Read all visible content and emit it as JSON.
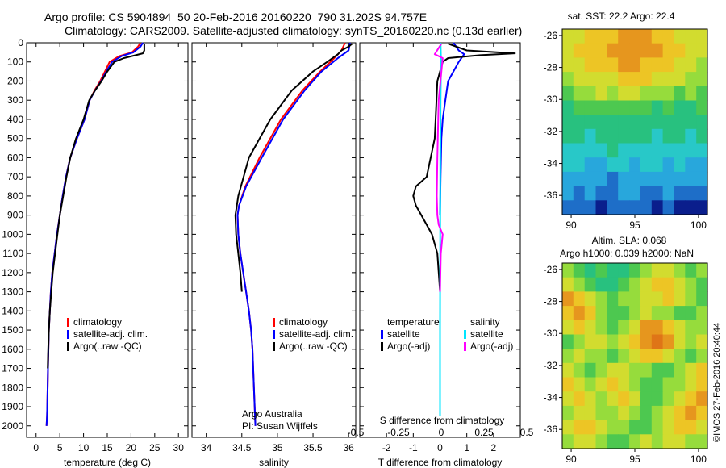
{
  "header": {
    "line1": "Argo profile: CS 5904894_50 20-Feb-2016 20160220_790 31.202S 94.757E",
    "line2": "Climatology: CARS2009. Satellite-adjusted climatology: synTS_20160220.nc (0.13d earlier)"
  },
  "colors": {
    "climatology": "#ff0000",
    "satellite": "#0000ff",
    "argo": "#000000",
    "sal_satellite": "#00e5ff",
    "sal_argo": "#ff00ff"
  },
  "depth_axis": {
    "ticks": [
      0,
      100,
      200,
      300,
      400,
      500,
      600,
      700,
      800,
      900,
      1000,
      1100,
      1200,
      1300,
      1400,
      1500,
      1600,
      1700,
      1800,
      1900,
      2000
    ],
    "ylim": [
      0,
      2060
    ],
    "inverted": true
  },
  "chart_data": [
    {
      "type": "line",
      "id": "temperature",
      "xlabel": "temperature (deg C)",
      "xticks": [
        0,
        5,
        10,
        15,
        20,
        25,
        30
      ],
      "xlim": [
        -2,
        32
      ],
      "legend": [
        "climatology",
        "satellite-adj. clim.",
        "Argo(..raw -QC)"
      ],
      "series": [
        {
          "name": "climatology",
          "color": "#ff0000",
          "x": [
            22.0,
            21.5,
            20.2,
            17.5,
            15.5,
            14.5,
            13.5,
            12.3,
            11.3,
            10.2,
            8.6,
            7.2,
            6.3,
            5.6,
            5.0,
            4.4,
            3.9,
            3.4,
            3.1,
            2.9,
            2.7,
            2.5,
            2.35,
            2.3,
            2.2
          ],
          "y": [
            0,
            20,
            50,
            70,
            100,
            150,
            200,
            250,
            300,
            400,
            500,
            600,
            700,
            800,
            900,
            1000,
            1100,
            1200,
            1300,
            1400,
            1500,
            1700,
            1900,
            1950,
            2000
          ]
        },
        {
          "name": "satellite-adj. clim.",
          "color": "#0000ff",
          "x": [
            22.5,
            22.0,
            20.5,
            18.0,
            16.0,
            14.8,
            13.7,
            12.4,
            11.3,
            10.2,
            8.6,
            7.2,
            6.3,
            5.6,
            5.0,
            4.4,
            3.9,
            3.4,
            3.1,
            2.9,
            2.7,
            2.5,
            2.35,
            2.3,
            2.2
          ],
          "y": [
            0,
            20,
            50,
            70,
            100,
            150,
            200,
            250,
            300,
            400,
            500,
            600,
            700,
            800,
            900,
            1000,
            1100,
            1200,
            1300,
            1400,
            1500,
            1700,
            1900,
            1950,
            2000
          ]
        },
        {
          "name": "Argo(..raw -QC)",
          "color": "#000000",
          "x": [
            22.8,
            22.8,
            22.5,
            21.0,
            18.5,
            16.5,
            15.0,
            13.8,
            12.4,
            11.2,
            10.0,
            8.4,
            7.2,
            6.4,
            5.7,
            5.0,
            4.5,
            4.0,
            3.5,
            3.2,
            2.9,
            2.7,
            2.55,
            2.45
          ],
          "y": [
            5,
            40,
            55,
            65,
            80,
            100,
            150,
            200,
            250,
            300,
            400,
            500,
            600,
            700,
            800,
            900,
            1000,
            1100,
            1200,
            1300,
            1400,
            1500,
            1600,
            1700
          ]
        }
      ]
    },
    {
      "type": "line",
      "id": "salinity",
      "xlabel": "salinity",
      "xticks": [
        34,
        34.5,
        35,
        35.5,
        36
      ],
      "xtick_labels": [
        "34",
        "34.5",
        "35",
        "35.5",
        "36"
      ],
      "xlim": [
        33.8,
        36.1
      ],
      "legend": [
        "climatology",
        "satellite-adj. clim.",
        "Argo(..raw -QC)"
      ],
      "annotation": [
        "Argo Australia",
        "PI: Susan Wijffels"
      ],
      "series": [
        {
          "name": "climatology",
          "color": "#ff0000",
          "x": [
            35.95,
            35.9,
            35.8,
            35.6,
            35.35,
            35.05,
            34.75,
            34.55,
            34.46,
            34.44,
            34.45,
            34.48,
            34.52,
            34.56,
            34.6,
            34.63,
            34.65,
            34.67,
            34.68,
            34.69
          ],
          "y": [
            0,
            40,
            80,
            150,
            250,
            400,
            600,
            750,
            850,
            900,
            1000,
            1100,
            1200,
            1300,
            1400,
            1500,
            1600,
            1800,
            1900,
            2000
          ]
        },
        {
          "name": "satellite-adj. clim.",
          "color": "#0000ff",
          "x": [
            36.02,
            36.0,
            35.85,
            35.62,
            35.38,
            35.08,
            34.78,
            34.56,
            34.46,
            34.44,
            34.45,
            34.48,
            34.52,
            34.56,
            34.6,
            34.63,
            34.65,
            34.67,
            34.68,
            34.69
          ],
          "y": [
            0,
            40,
            80,
            150,
            250,
            400,
            600,
            750,
            850,
            900,
            1000,
            1100,
            1200,
            1300,
            1400,
            1500,
            1600,
            1800,
            1900,
            2000
          ]
        },
        {
          "name": "Argo(..raw -QC)",
          "color": "#000000",
          "x": [
            36.05,
            36.0,
            35.9,
            35.85,
            35.7,
            35.5,
            35.2,
            34.9,
            34.6,
            34.45,
            34.41,
            34.42,
            34.45,
            34.48,
            34.5
          ],
          "y": [
            5,
            20,
            40,
            60,
            100,
            150,
            250,
            400,
            600,
            800,
            900,
            1000,
            1100,
            1200,
            1300
          ]
        }
      ]
    },
    {
      "type": "line",
      "id": "difference",
      "xlabel": "T difference from climatology",
      "xlabel_top": "S difference from climatology",
      "xticks": [
        -2,
        -1,
        0,
        1,
        2
      ],
      "xticks_top": [
        -0.5,
        -0.25,
        0,
        0.25,
        0.5
      ],
      "xtick_labels_top": [
        "-0.5",
        "-0.25",
        "0",
        "0.25",
        "0.5"
      ],
      "xlim": [
        -3,
        3
      ],
      "legend_temperature_title": "temperature",
      "legend_salinity_title": "salinity",
      "legend_temperature": [
        "satellite",
        "Argo(-adj)"
      ],
      "legend_salinity": [
        "satellite",
        "Argo(-adj)"
      ],
      "series": [
        {
          "name": "satellite",
          "color": "#0000ff",
          "x": [
            0.5,
            0.7,
            0.9,
            0.7,
            0.5,
            0.3,
            0.2,
            0.1,
            0.05,
            0.02,
            0
          ],
          "y": [
            0,
            40,
            60,
            100,
            150,
            200,
            300,
            400,
            500,
            700,
            900
          ]
        },
        {
          "name": "Argo(-adj)",
          "color": "#000000",
          "x": [
            0.3,
            1.0,
            2.8,
            1.5,
            0.3,
            0.1,
            -0.1,
            -0.2,
            -0.5,
            -0.9,
            -1.0,
            -0.9,
            -0.7,
            -0.5,
            -0.3,
            -0.1,
            0
          ],
          "y": [
            5,
            40,
            55,
            65,
            80,
            100,
            200,
            500,
            700,
            750,
            800,
            850,
            900,
            950,
            1000,
            1100,
            1300
          ]
        },
        {
          "name": "satellite",
          "color": "#00e5ff",
          "x": [
            0.02,
            0.04,
            0.02,
            0.01,
            0.005,
            0,
            0,
            0
          ],
          "y": [
            0,
            100,
            300,
            600,
            1000,
            1500,
            1900,
            1950
          ]
        },
        {
          "name": "Argo(-adj)",
          "color": "#ff00ff",
          "x": [
            0.05,
            -0.2,
            0.1,
            0.05,
            -0.05,
            -0.1,
            -0.12,
            -0.1,
            -0.05,
            0.1,
            0.03,
            0
          ],
          "y": [
            5,
            60,
            80,
            150,
            300,
            600,
            800,
            900,
            950,
            1000,
            1100,
            1300
          ]
        }
      ]
    },
    {
      "type": "heatmap",
      "id": "sst_map",
      "title": "sat. SST: 22.2  Argo: 22.4",
      "xticks": [
        90,
        95,
        100
      ],
      "yticks": [
        -26,
        -28,
        -30,
        -32,
        -34,
        -36
      ],
      "xlim": [
        89.3,
        100.7
      ],
      "ylim": [
        -25.6,
        -37.2
      ],
      "rows": 13,
      "cols": 13,
      "values": [
        [
          1,
          1,
          2,
          2,
          2,
          3,
          3,
          3,
          2,
          2,
          1,
          1,
          1
        ],
        [
          1,
          2,
          2,
          2,
          3,
          3,
          3,
          3,
          3,
          2,
          2,
          1,
          1
        ],
        [
          1,
          1,
          2,
          2,
          2,
          3,
          3,
          2,
          2,
          2,
          1,
          1,
          0
        ],
        [
          0,
          1,
          1,
          1,
          1,
          2,
          2,
          2,
          1,
          1,
          1,
          0,
          0
        ],
        [
          -1,
          0,
          0,
          1,
          0,
          1,
          1,
          0,
          0,
          0,
          -1,
          0,
          -1
        ],
        [
          -2,
          -1,
          -1,
          -1,
          -1,
          -1,
          -1,
          -1,
          -2,
          -1,
          -2,
          -2,
          -1
        ],
        [
          -2,
          -2,
          -2,
          -2,
          -2,
          -2,
          -2,
          -2,
          -2,
          -2,
          -2,
          -2,
          -2
        ],
        [
          -2,
          -2,
          -3,
          -2,
          -2,
          -2,
          -2,
          -2,
          -3,
          -2,
          -2,
          -3,
          -2
        ],
        [
          -3,
          -3,
          -3,
          -3,
          -2,
          -3,
          -3,
          -3,
          -3,
          -3,
          -3,
          -3,
          -3
        ],
        [
          -3,
          -3,
          -4,
          -4,
          -3,
          -3,
          -4,
          -3,
          -3,
          -4,
          -3,
          -4,
          -4
        ],
        [
          -4,
          -4,
          -4,
          -4,
          -5,
          -4,
          -4,
          -4,
          -4,
          -4,
          -4,
          -4,
          -4
        ],
        [
          -4,
          -5,
          -4,
          -5,
          -5,
          -4,
          -4,
          -5,
          -5,
          -4,
          -5,
          -5,
          -5
        ],
        [
          -5,
          -5,
          -5,
          -6,
          -5,
          -5,
          -5,
          -5,
          -6,
          -5,
          -6,
          -6,
          -6
        ]
      ]
    },
    {
      "type": "heatmap",
      "id": "sla_map",
      "title_lines": [
        "Altim. SLA: 0.068",
        "Argo h1000: 0.039 h2000: NaN"
      ],
      "xticks": [
        90,
        95,
        100
      ],
      "yticks": [
        -26,
        -28,
        -30,
        -32,
        -34,
        -36
      ],
      "xlim": [
        89.3,
        100.7
      ],
      "ylim": [
        -25.6,
        -37.2
      ],
      "rows": 13,
      "cols": 13,
      "values": [
        [
          0,
          -1,
          -2,
          -1,
          -2,
          -2,
          -1,
          0,
          1,
          1,
          0,
          -1,
          0
        ],
        [
          1,
          0,
          -1,
          -2,
          -2,
          -1,
          0,
          1,
          2,
          2,
          1,
          0,
          -1
        ],
        [
          3,
          2,
          1,
          0,
          -1,
          0,
          0,
          1,
          1,
          2,
          1,
          0,
          -1
        ],
        [
          2,
          3,
          2,
          0,
          -1,
          -1,
          0,
          1,
          0,
          0,
          -1,
          -1,
          0
        ],
        [
          1,
          2,
          1,
          0,
          -1,
          0,
          1,
          3,
          3,
          2,
          1,
          0,
          0
        ],
        [
          -1,
          0,
          1,
          1,
          0,
          1,
          2,
          3,
          4,
          3,
          1,
          0,
          1
        ],
        [
          0,
          1,
          0,
          0,
          -1,
          0,
          1,
          2,
          2,
          1,
          0,
          -1,
          0
        ],
        [
          1,
          0,
          -1,
          0,
          1,
          1,
          0,
          0,
          -1,
          -1,
          0,
          1,
          2
        ],
        [
          2,
          1,
          0,
          1,
          2,
          1,
          0,
          -1,
          -1,
          0,
          0,
          1,
          2
        ],
        [
          1,
          2,
          1,
          0,
          1,
          2,
          1,
          -1,
          -1,
          0,
          1,
          2,
          3
        ],
        [
          0,
          1,
          1,
          0,
          0,
          1,
          0,
          -1,
          0,
          1,
          2,
          3,
          2
        ],
        [
          1,
          2,
          2,
          1,
          0,
          0,
          -1,
          -1,
          0,
          1,
          2,
          2,
          1
        ],
        [
          0,
          1,
          1,
          0,
          -1,
          -1,
          0,
          1,
          0,
          1,
          1,
          0,
          0
        ]
      ]
    }
  ],
  "footer_stamp": "©IMOS 27-Feb-2016 20:40:44"
}
